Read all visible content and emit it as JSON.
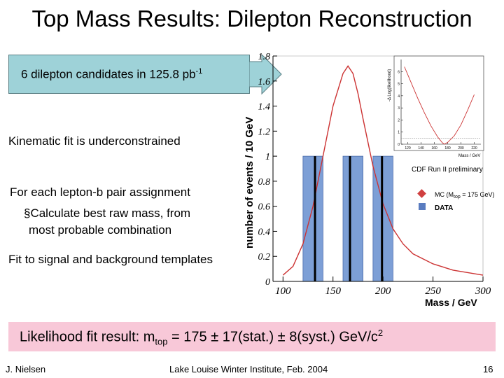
{
  "slide": {
    "title": "Top Mass Results: Dilepton Reconstruction",
    "callout": {
      "text": "6 dilepton candidates in 125.8 pb",
      "superscript": "-1"
    },
    "bullets": [
      {
        "text": "Kinematic fit is underconstrained"
      },
      {
        "text": "For each lepton-b pair assignment"
      },
      {
        "text": "§Calculate best raw mass, from"
      },
      {
        "text": "most probable combination"
      },
      {
        "text": "Fit to signal and background templates"
      }
    ],
    "result": {
      "prefix": "Likelihood fit result: m",
      "subscript": "top",
      "middle": " = 175 ± 17(stat.) ± 8(syst.) GeV/c",
      "superscript": "2"
    },
    "footer": {
      "author": "J. Nielsen",
      "venue": "Lake Louise Winter Institute, Feb. 2004",
      "page": "16"
    }
  },
  "chart_data": {
    "type": "bar",
    "ylabel": "number of events / 10 GeV",
    "xlabel": "Mass / GeV",
    "xlim": [
      90,
      300
    ],
    "ylim": [
      0,
      1.8
    ],
    "x_ticks": [
      100,
      150,
      200,
      250,
      300
    ],
    "y_ticks": [
      0,
      0.2,
      0.4,
      0.6,
      0.8,
      1,
      1.2,
      1.4,
      1.6,
      1.8
    ],
    "y_tick_labels": [
      "0",
      "0.2",
      "0.4",
      "0.6",
      "0.8",
      "1",
      "1.2",
      "1.4",
      "1.6",
      "1.8"
    ],
    "annotation": "CDF Run II preliminary",
    "legend": [
      {
        "label": "MC (M",
        "sub": "top",
        "label_end": " = 175 GeV)",
        "color": "#d04040"
      },
      {
        "label": "DATA",
        "color": "#5a7cc0"
      }
    ],
    "bars": [
      {
        "x0": 120,
        "x1": 140,
        "value": 1
      },
      {
        "x0": 160,
        "x1": 180,
        "value": 1
      },
      {
        "x0": 190,
        "x1": 210,
        "value": 1
      }
    ],
    "data_lines_x": [
      132,
      167,
      199
    ],
    "mc_curve": {
      "x": [
        100,
        110,
        120,
        130,
        140,
        150,
        160,
        165,
        170,
        175,
        180,
        190,
        200,
        210,
        220,
        230,
        250,
        270,
        300
      ],
      "y": [
        0.05,
        0.12,
        0.3,
        0.6,
        1.0,
        1.4,
        1.66,
        1.72,
        1.66,
        1.5,
        1.3,
        0.92,
        0.62,
        0.42,
        0.3,
        0.22,
        0.14,
        0.09,
        0.05
      ]
    },
    "inset": {
      "ylabel": "-Δ Log(likelihood)",
      "xlabel": "Mass / GeV",
      "x_ticks": [
        120,
        140,
        160,
        180,
        200,
        220
      ],
      "y_ticks": [
        0,
        1,
        2,
        3,
        4,
        5,
        6
      ],
      "xlim": [
        110,
        230
      ],
      "ylim": [
        0,
        7
      ],
      "curve": {
        "x": [
          115,
          125,
          135,
          145,
          155,
          165,
          172,
          175,
          180,
          190,
          200,
          210,
          220
        ],
        "y": [
          6.4,
          5.1,
          3.8,
          2.6,
          1.5,
          0.6,
          0.12,
          0,
          0.15,
          0.7,
          1.6,
          2.8,
          4.1
        ]
      },
      "half_line": 0.5
    }
  }
}
